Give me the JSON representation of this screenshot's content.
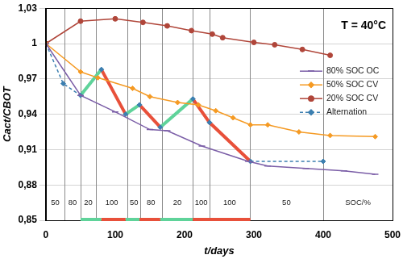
{
  "chart_data": {
    "type": "line",
    "annotation": "T = 40°C",
    "x_label": "t/days",
    "y_label": "Cact/CBOT",
    "xlim": [
      0,
      500
    ],
    "xticks": [
      0,
      100,
      200,
      300,
      400,
      500
    ],
    "ylim": [
      0.85,
      1.03
    ],
    "yticks": [
      {
        "value": 0.85,
        "label": "0,85"
      },
      {
        "value": 0.88,
        "label": "0,88"
      },
      {
        "value": 0.91,
        "label": "0,91"
      },
      {
        "value": 0.94,
        "label": "0,94"
      },
      {
        "value": 0.97,
        "label": "0,97"
      },
      1,
      {
        "value": 1.03,
        "label": "1,03"
      }
    ],
    "grid": true,
    "legend": "right",
    "soc_phases": {
      "boundaries": [
        27,
        50,
        72,
        118,
        136,
        167,
        212,
        236,
        294,
        400
      ],
      "labels": [
        "50",
        "80",
        "20",
        "100",
        "50",
        "80",
        "20",
        "100",
        "100",
        "50",
        "SOC/%"
      ]
    },
    "series": [
      {
        "name": "80% SOC OC",
        "color": "#7b5ea7",
        "marker": "dash",
        "line_style": "solid",
        "x": [
          0,
          50,
          100,
          150,
          175,
          225,
          292,
          320,
          375,
          430,
          475
        ],
        "values": [
          1,
          0.956,
          0.942,
          0.927,
          0.926,
          0.913,
          0.9,
          0.896,
          0.894,
          0.892,
          0.889
        ]
      },
      {
        "name": "50% SOC CV",
        "color": "#f59a23",
        "marker": "diamond",
        "line_style": "solid",
        "x": [
          0,
          50,
          75,
          125,
          150,
          190,
          220,
          245,
          270,
          295,
          320,
          365,
          410,
          475
        ],
        "values": [
          1,
          0.976,
          0.971,
          0.962,
          0.955,
          0.95,
          0.948,
          0.943,
          0.937,
          0.931,
          0.931,
          0.925,
          0.922,
          0.921
        ]
      },
      {
        "name": "20% SOC CV",
        "color": "#b0463a",
        "marker": "circle",
        "line_style": "solid",
        "x": [
          0,
          50,
          100,
          140,
          175,
          210,
          240,
          255,
          300,
          330,
          370,
          410
        ],
        "values": [
          1,
          1.019,
          1.021,
          1.018,
          1.015,
          1.011,
          1.008,
          1.005,
          1.001,
          0.999,
          0.995,
          0.99
        ]
      },
      {
        "name": "Alternation",
        "color": "#3c7fb0",
        "marker": "diamond",
        "line_style": "dashed",
        "x": [
          0,
          25,
          50,
          80,
          115,
          135,
          165,
          212,
          236,
          295,
          400
        ],
        "values": [
          1,
          0.966,
          0.956,
          0.978,
          0.94,
          0.948,
          0.929,
          0.953,
          0.933,
          0.9,
          0.9
        ],
        "highlights": [
          {
            "x": [
              50,
              80
            ],
            "color": "#5fd39a"
          },
          {
            "x": [
              80,
              115
            ],
            "color": "#e8503a"
          },
          {
            "x": [
              115,
              135
            ],
            "color": "#5fd39a"
          },
          {
            "x": [
              135,
              165
            ],
            "color": "#e8503a"
          },
          {
            "x": [
              165,
              212
            ],
            "color": "#5fd39a"
          },
          {
            "x": [
              212,
              295
            ],
            "color": "#e8503a"
          }
        ]
      }
    ]
  }
}
